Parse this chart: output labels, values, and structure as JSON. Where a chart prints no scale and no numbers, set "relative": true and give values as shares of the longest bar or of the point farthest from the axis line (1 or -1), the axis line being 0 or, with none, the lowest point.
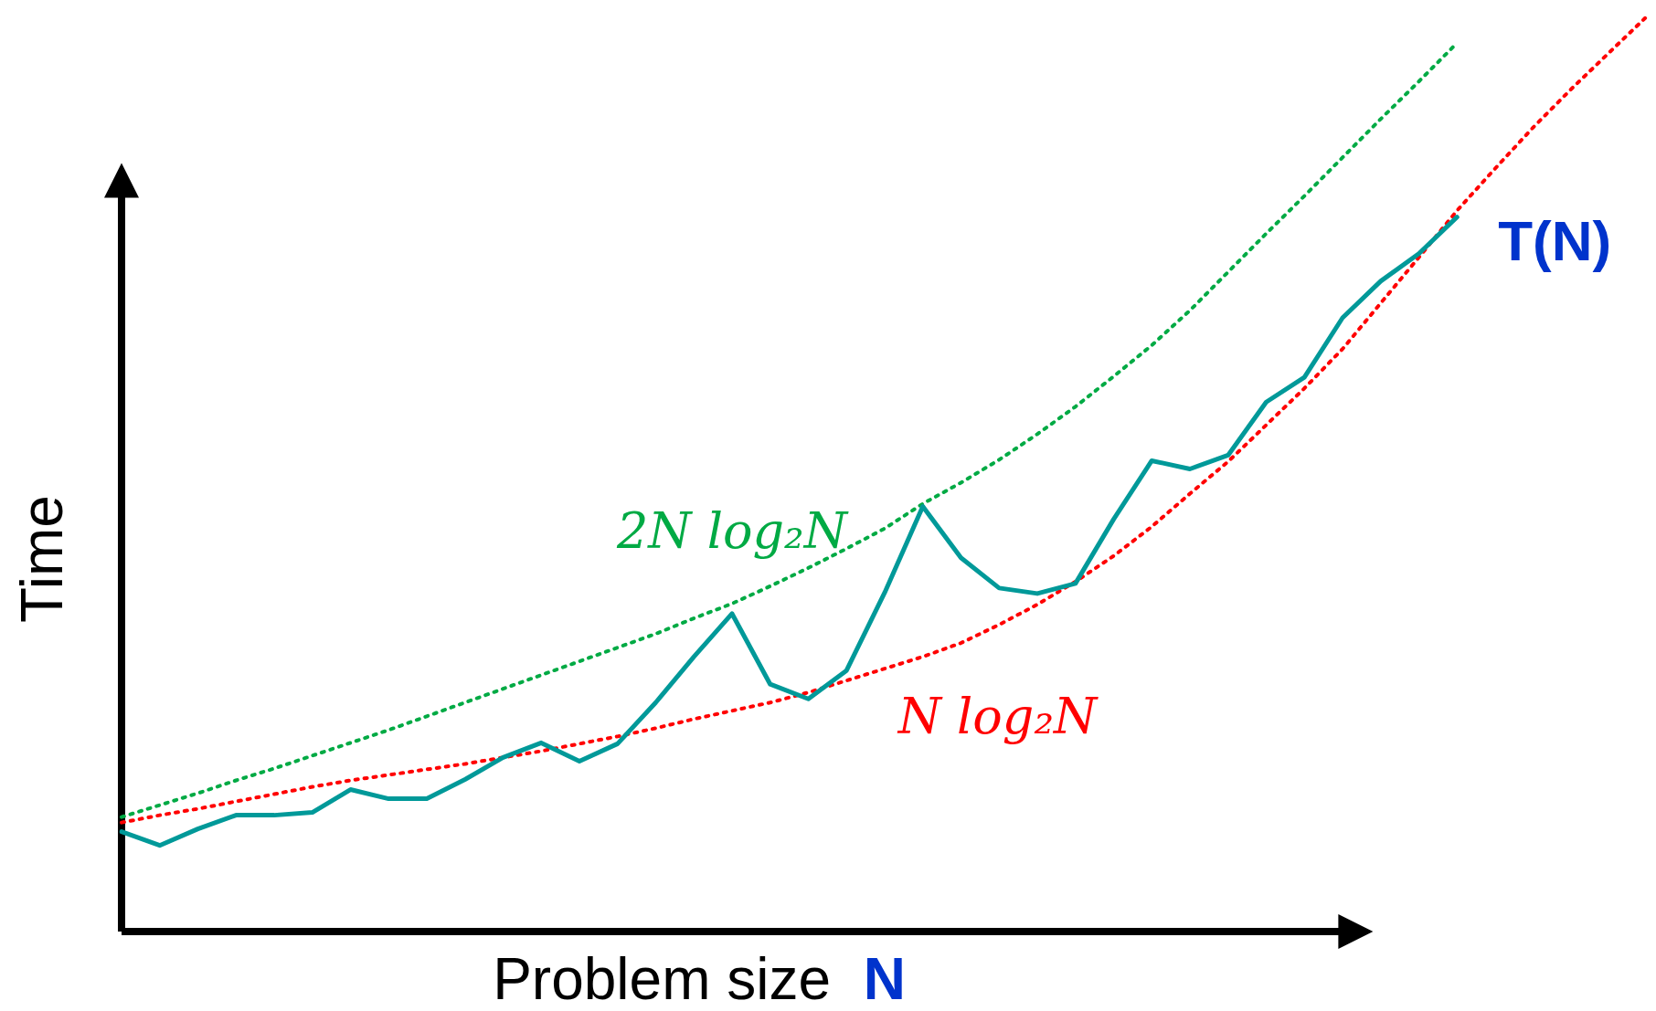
{
  "chart_data": {
    "type": "line",
    "relative": true,
    "xlabel": "Problem size  N",
    "ylabel": "Time",
    "legend": false,
    "marker": "none",
    "categories": [
      null,
      null,
      null,
      null,
      null,
      null,
      null,
      null,
      null,
      null,
      null,
      null,
      null,
      null,
      null,
      null,
      null,
      null,
      null,
      null,
      null,
      null,
      null,
      null,
      null,
      null,
      null,
      null,
      null,
      null,
      null,
      null,
      null,
      null,
      null,
      null,
      null,
      null,
      null,
      null,
      null
    ],
    "series": [
      {
        "name": "T(N)",
        "color": "#009999",
        "line_style": "solid",
        "values": [
          0.109,
          0.094,
          0.112,
          0.127,
          0.127,
          0.13,
          0.155,
          0.145,
          0.145,
          0.166,
          0.19,
          0.206,
          0.186,
          0.205,
          0.25,
          0.3,
          0.347,
          0.27,
          0.254,
          0.285,
          0.37,
          0.464,
          0.408,
          0.375,
          0.369,
          0.38,
          0.45,
          0.514,
          0.505,
          0.52,
          0.578,
          0.605,
          0.67,
          0.71,
          0.74,
          0.78,
          null,
          null,
          null,
          null,
          null
        ]
      },
      {
        "name": "2N log₂N",
        "color": "#00aa44",
        "line_style": "dotted",
        "values": [
          0.125,
          0.138,
          0.151,
          0.165,
          0.178,
          0.192,
          0.206,
          0.22,
          0.235,
          0.25,
          0.265,
          0.28,
          0.295,
          0.31,
          0.325,
          0.342,
          0.358,
          0.377,
          0.397,
          0.418,
          0.44,
          0.467,
          0.49,
          0.515,
          0.543,
          0.573,
          0.606,
          0.64,
          0.678,
          0.72,
          0.762,
          0.803,
          0.845,
          0.887,
          0.928,
          0.97,
          null,
          null,
          null,
          null,
          null
        ]
      },
      {
        "name": "N log₂N",
        "color": "#ff0000",
        "line_style": "dotted",
        "values": [
          0.119,
          0.127,
          0.134,
          0.142,
          0.15,
          0.158,
          0.165,
          0.171,
          0.177,
          0.183,
          0.19,
          0.197,
          0.205,
          0.213,
          0.222,
          0.232,
          0.241,
          0.25,
          0.261,
          0.274,
          0.287,
          0.3,
          0.315,
          0.335,
          0.357,
          0.382,
          0.41,
          0.442,
          0.478,
          0.513,
          0.553,
          0.593,
          0.636,
          0.686,
          0.736,
          0.787,
          0.833,
          0.878,
          0.92,
          0.96,
          1.0
        ]
      }
    ]
  }
}
